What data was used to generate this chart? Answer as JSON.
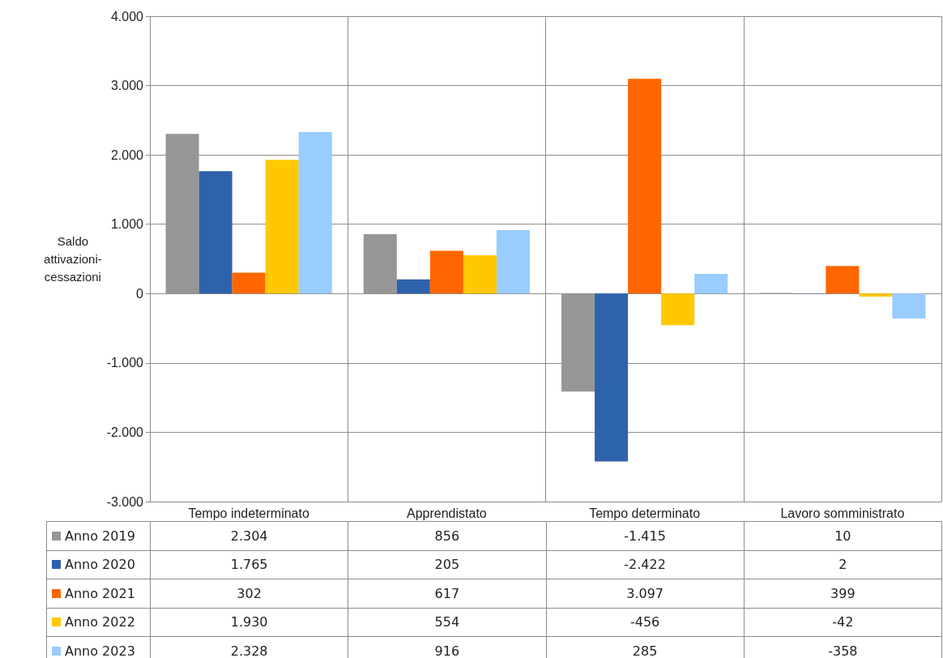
{
  "chart_data": {
    "type": "bar",
    "ylabel": "Saldo\nattivazioni-\ncessazioni",
    "categories": [
      "Tempo indeterminato",
      "Apprendistato",
      "Tempo determinato",
      "Lavoro somministrato"
    ],
    "series": [
      {
        "name": "Anno 2019",
        "color": "#969696",
        "values": [
          2304,
          856,
          -1415,
          10
        ],
        "value_labels": [
          "2.304",
          "856",
          "-1.415",
          "10"
        ]
      },
      {
        "name": "Anno 2020",
        "color": "#2e62ab",
        "values": [
          1765,
          205,
          -2422,
          2
        ],
        "value_labels": [
          "1.765",
          "205",
          "-2.422",
          "2"
        ]
      },
      {
        "name": "Anno 2021",
        "color": "#ff6600",
        "values": [
          302,
          617,
          3097,
          399
        ],
        "value_labels": [
          "302",
          "617",
          "3.097",
          "399"
        ]
      },
      {
        "name": "Anno 2022",
        "color": "#ffc800",
        "values": [
          1930,
          554,
          -456,
          -42
        ],
        "value_labels": [
          "1.930",
          "554",
          "-456",
          "-42"
        ]
      },
      {
        "name": "Anno 2023",
        "color": "#99ccff",
        "values": [
          2328,
          916,
          285,
          -358
        ],
        "value_labels": [
          "2.328",
          "916",
          "285",
          "-358"
        ]
      }
    ],
    "ylim": [
      -3000,
      4000
    ],
    "yticks": [
      {
        "value": -3000,
        "label": "-3.000"
      },
      {
        "value": -2000,
        "label": "-2.000"
      },
      {
        "value": -1000,
        "label": "-1.000"
      },
      0,
      {
        "value": 1000,
        "label": "1.000"
      },
      {
        "value": 2000,
        "label": "2.000"
      },
      {
        "value": 3000,
        "label": "3.000"
      },
      {
        "value": 4000,
        "label": "4.000"
      }
    ],
    "grid": true,
    "legend": "bottom"
  }
}
